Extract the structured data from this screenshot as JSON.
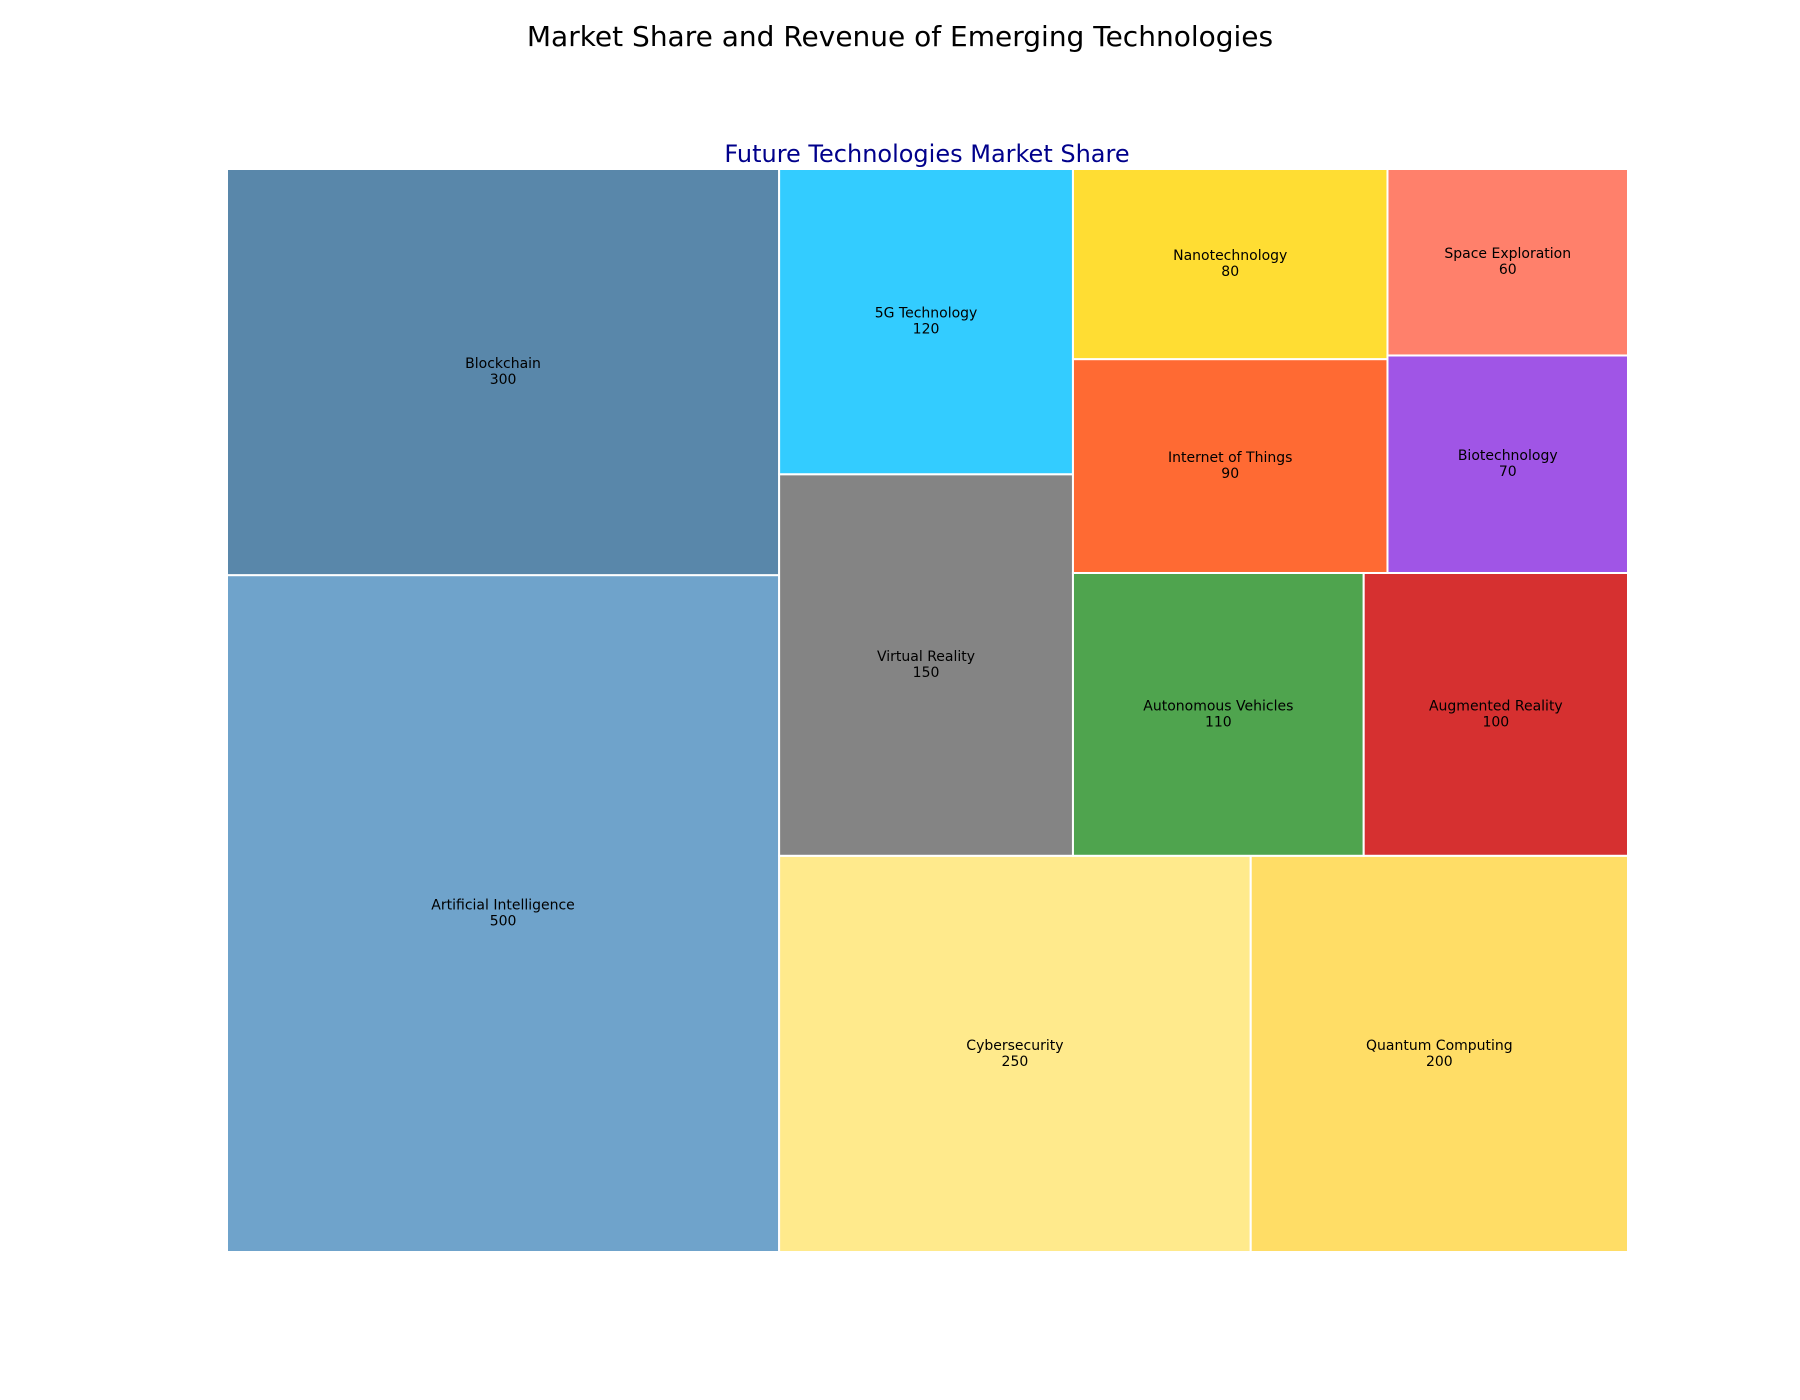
{
  "figure_title": "Market Share and Revenue of Emerging Technologies",
  "chart_data": {
    "type": "treemap",
    "title": "Future Technologies Market Share",
    "title_color": "#00008b",
    "items": [
      {
        "label": "Artificial Intelligence",
        "value": 500,
        "color": "#6fa3cb"
      },
      {
        "label": "Blockchain",
        "value": 300,
        "color": "#5987aa"
      },
      {
        "label": "Cybersecurity",
        "value": 250,
        "color": "#ffea8c"
      },
      {
        "label": "Quantum Computing",
        "value": 200,
        "color": "#ffdd66"
      },
      {
        "label": "Virtual Reality",
        "value": 150,
        "color": "#848484"
      },
      {
        "label": "5G Technology",
        "value": 120,
        "color": "#33ccff"
      },
      {
        "label": "Autonomous Vehicles",
        "value": 110,
        "color": "#4fa44e"
      },
      {
        "label": "Augmented Reality",
        "value": 100,
        "color": "#d63030"
      },
      {
        "label": "Internet of Things",
        "value": 90,
        "color": "#ff6a33"
      },
      {
        "label": "Nanotechnology",
        "value": 80,
        "color": "#ffdd33"
      },
      {
        "label": "Biotechnology",
        "value": 70,
        "color": "#a055e6"
      },
      {
        "label": "Space Exploration",
        "value": 60,
        "color": "#ff806b"
      }
    ]
  }
}
